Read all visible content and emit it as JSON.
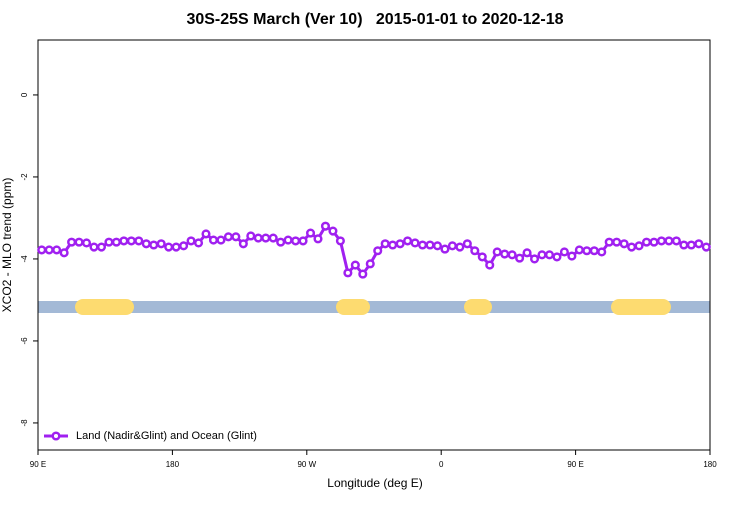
{
  "chart_data": {
    "type": "line",
    "title": "30S-25S March (Ver 10)   2015-01-01 to 2020-12-18",
    "x_label": "Longitude (deg E)",
    "y_label": "XCO2 - MLO trend (ppm)",
    "x": [
      92.5,
      97.5,
      102.5,
      107.5,
      112.5,
      117.5,
      122.5,
      127.5,
      132.5,
      137.5,
      142.5,
      147.5,
      152.5,
      157.5,
      162.5,
      167.5,
      172.5,
      177.5,
      182.5,
      187.5,
      192.5,
      197.5,
      202.5,
      207.5,
      212.5,
      217.5,
      222.5,
      227.5,
      232.5,
      237.5,
      242.5,
      247.5,
      252.5,
      257.5,
      262.5,
      267.5,
      272.5,
      277.5,
      282.5,
      287.5,
      292.5,
      297.5,
      302.5,
      307.5,
      312.5,
      317.5,
      322.5,
      327.5,
      332.5,
      337.5,
      342.5,
      347.5,
      352.5,
      357.5,
      362.5,
      367.5,
      372.5,
      377.5,
      382.5,
      387.5,
      392.5,
      397.5,
      402.5,
      407.5,
      412.5,
      417.5,
      422.5,
      427.5,
      432.5,
      437.5,
      442.5,
      447.5,
      452.5,
      457.5,
      462.5,
      467.5,
      472.5,
      477.5,
      482.5,
      487.5,
      492.5,
      497.5,
      502.5,
      507.5,
      512.5,
      517.5,
      522.5,
      527.5,
      532.5,
      537.5
    ],
    "series": [
      {
        "name": "Land (Nadir&Glint) and Ocean (Glint)",
        "color": "#a020f0",
        "values": [
          -3.78,
          -3.78,
          -3.78,
          -3.85,
          -3.59,
          -3.59,
          -3.61,
          -3.71,
          -3.71,
          -3.59,
          -3.59,
          -3.56,
          -3.56,
          -3.56,
          -3.63,
          -3.66,
          -3.63,
          -3.71,
          -3.71,
          -3.68,
          -3.56,
          -3.61,
          -3.39,
          -3.54,
          -3.54,
          -3.46,
          -3.46,
          -3.63,
          -3.44,
          -3.49,
          -3.49,
          -3.49,
          -3.59,
          -3.54,
          -3.56,
          -3.56,
          -3.37,
          -3.51,
          -3.2,
          -3.32,
          -3.56,
          -4.34,
          -4.15,
          -4.37,
          -4.12,
          -3.8,
          -3.63,
          -3.66,
          -3.63,
          -3.56,
          -3.61,
          -3.66,
          -3.66,
          -3.68,
          -3.76,
          -3.68,
          -3.71,
          -3.63,
          -3.8,
          -3.95,
          -4.15,
          -3.83,
          -3.88,
          -3.9,
          -3.98,
          -3.85,
          -4.0,
          -3.9,
          -3.9,
          -3.95,
          -3.83,
          -3.93,
          -3.78,
          -3.8,
          -3.8,
          -3.83,
          -3.59,
          -3.59,
          -3.63,
          -3.71,
          -3.68,
          -3.59,
          -3.59,
          -3.56,
          -3.56,
          -3.56,
          -3.66,
          -3.66,
          -3.63,
          -3.71
        ]
      }
    ],
    "xlim": [
      90,
      540
    ],
    "xticks": [
      {
        "value": 90,
        "label": "90 E"
      },
      180,
      {
        "value": 270,
        "label": "90 W"
      },
      {
        "value": 360,
        "label": "0"
      },
      {
        "value": 450,
        "label": "90 E"
      },
      {
        "value": 540,
        "label": "180"
      }
    ],
    "ylim": [
      -8.66,
      1.34
    ],
    "yticks": [
      0,
      -2,
      -4,
      -6,
      -8
    ],
    "legend": "bottom-left"
  }
}
